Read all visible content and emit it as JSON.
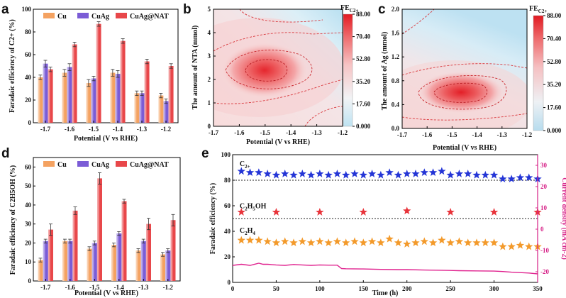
{
  "figure": {
    "panel_labels": [
      "a",
      "b",
      "c",
      "d",
      "e"
    ]
  },
  "chart_data": [
    {
      "id": "a",
      "type": "bar",
      "ylabel": "Faradaic efficiency of C2+ (%)",
      "xlabel": "Potential (V vs RHE)",
      "categories": [
        "-1.7",
        "-1.6",
        "-1.5",
        "-1.4",
        "-1.3",
        "-1.2"
      ],
      "ylim": [
        0,
        100
      ],
      "yticks": [
        0,
        20,
        40,
        60,
        80,
        100
      ],
      "series": [
        {
          "name": "Cu",
          "color": "#f4a261",
          "values": [
            40,
            44,
            35,
            44,
            26,
            24
          ],
          "errors": [
            2,
            3,
            3,
            3,
            2,
            2
          ]
        },
        {
          "name": "CuAg",
          "color": "#7b5cd6",
          "values": [
            52,
            49,
            39,
            43,
            26,
            19
          ],
          "errors": [
            3,
            3,
            2,
            3,
            2,
            2
          ]
        },
        {
          "name": "CuAg@NAT",
          "color": "#e8474a",
          "values": [
            47,
            69,
            87,
            72,
            54,
            50
          ],
          "errors": [
            2,
            2,
            2,
            2,
            2,
            2
          ]
        }
      ]
    },
    {
      "id": "b",
      "type": "heatmap",
      "xlabel": "Potential (V vs RHE)",
      "ylabel": "The amount of NTA (mmol)",
      "xticks": [
        "-1.7",
        "-1.6",
        "-1.5",
        "-1.4",
        "-1.3",
        "-1.2"
      ],
      "yticks": [
        "0",
        "1",
        "2",
        "3",
        "4",
        "5"
      ],
      "xlim": [
        -1.7,
        -1.2
      ],
      "ylim": [
        0,
        5
      ],
      "peak": {
        "x": -1.5,
        "y": 2.3,
        "value": 88.0
      },
      "colorbar": {
        "title": "FE",
        "title_sub": "C2+",
        "ticks": [
          "88.00",
          "70.40",
          "52.80",
          "35.20",
          "17.60",
          "0.000"
        ]
      }
    },
    {
      "id": "c",
      "type": "heatmap",
      "xlabel": "Potential (V vs RHE)",
      "ylabel": "The amount of Ag (mmol)",
      "xticks": [
        "-1.7",
        "-1.6",
        "-1.5",
        "-1.4",
        "-1.3",
        "-1.2"
      ],
      "yticks": [
        "0.0",
        "0.4",
        "0.8",
        "1.2",
        "1.6",
        "2.0"
      ],
      "xlim": [
        -1.7,
        -1.2
      ],
      "ylim": [
        0,
        2
      ],
      "peak": {
        "x": -1.47,
        "y": 0.6,
        "value": 88.0
      },
      "colorbar": {
        "title": "FE",
        "title_sub": "C2+",
        "ticks": [
          "88.00",
          "70.40",
          "52.80",
          "35.20",
          "17.60",
          "0.000"
        ]
      }
    },
    {
      "id": "d",
      "type": "bar",
      "ylabel": "Faradaic efficiency of C2H5OH (%)",
      "xlabel": "Potential (V vs RHE)",
      "categories": [
        "-1.7",
        "-1.6",
        "-1.5",
        "-1.4",
        "-1.3",
        "-1.2"
      ],
      "ylim": [
        0,
        65
      ],
      "yticks": [
        0,
        10,
        20,
        30,
        40,
        50,
        60
      ],
      "series": [
        {
          "name": "Cu",
          "color": "#f4a261",
          "values": [
            11,
            21,
            17,
            19,
            16,
            14
          ],
          "errors": [
            1,
            1,
            1,
            1,
            1,
            1
          ]
        },
        {
          "name": "CuAg",
          "color": "#7b5cd6",
          "values": [
            21,
            21,
            20,
            25,
            21,
            16
          ],
          "errors": [
            1,
            1,
            1,
            1,
            1,
            1
          ]
        },
        {
          "name": "CuAg@NAT",
          "color": "#e8474a",
          "values": [
            27,
            37,
            54,
            42,
            30,
            32
          ],
          "errors": [
            3,
            2,
            3,
            1,
            3,
            3
          ]
        }
      ]
    },
    {
      "id": "e",
      "type": "scatter",
      "xlabel": "Time (h)",
      "ylabel": "Faradaic efficiency (%)",
      "y2label": "Current density (mA cm-2)",
      "xlim": [
        0,
        350
      ],
      "ylim": [
        0,
        100
      ],
      "y2lim": [
        -25,
        35
      ],
      "xticks": [
        0,
        50,
        100,
        150,
        200,
        250,
        300,
        350
      ],
      "yticks": [
        0,
        20,
        40,
        60,
        80,
        100
      ],
      "y2ticks": [
        -20,
        -10,
        0,
        10,
        20,
        30
      ],
      "annotations": [
        {
          "text": "C",
          "sub": "2+",
          "x": 8,
          "y": 91
        },
        {
          "text": "C",
          "sub": "2",
          "text2": "H",
          "sub2": "5",
          "text3": "OH",
          "x": 8,
          "y": 58
        },
        {
          "text": "C",
          "sub": "2",
          "text2": "H",
          "sub2": "4",
          "x": 8,
          "y": 39
        }
      ],
      "ref_lines": [
        80,
        50
      ],
      "series": [
        {
          "name": "C2+",
          "color": "#2435d6",
          "marker": "star",
          "x": [
            10,
            20,
            30,
            40,
            50,
            60,
            70,
            80,
            90,
            100,
            110,
            120,
            130,
            140,
            150,
            160,
            170,
            180,
            190,
            200,
            210,
            220,
            230,
            240,
            250,
            260,
            270,
            280,
            290,
            300,
            310,
            320,
            330,
            340,
            350
          ],
          "y": [
            87,
            86,
            86,
            85,
            84,
            85,
            84,
            85,
            84,
            85,
            84,
            85,
            84,
            85,
            84,
            85,
            84,
            86,
            84,
            85,
            85,
            86,
            86,
            87,
            84,
            85,
            85,
            84,
            84,
            84,
            81,
            81,
            82,
            82,
            81
          ]
        },
        {
          "name": "C2H5OH",
          "color": "#e8333a",
          "marker": "star",
          "x": [
            10,
            50,
            100,
            150,
            200,
            250,
            300,
            350
          ],
          "y": [
            55,
            55,
            55,
            55,
            56,
            55,
            55,
            55
          ]
        },
        {
          "name": "C2H4",
          "color": "#f39a2b",
          "marker": "star",
          "x": [
            10,
            20,
            30,
            40,
            50,
            60,
            70,
            80,
            90,
            100,
            110,
            120,
            130,
            140,
            150,
            160,
            170,
            180,
            190,
            200,
            210,
            220,
            230,
            240,
            250,
            260,
            270,
            280,
            290,
            300,
            310,
            320,
            330,
            340,
            350
          ],
          "y": [
            33,
            33,
            33,
            32,
            31,
            32,
            31,
            32,
            31,
            32,
            31,
            32,
            31,
            32,
            31,
            32,
            31,
            34,
            31,
            30,
            31,
            32,
            31,
            33,
            31,
            32,
            31,
            31,
            31,
            31,
            28,
            28,
            29,
            28,
            28
          ]
        },
        {
          "name": "Current density",
          "color": "#e0238f",
          "marker": "line",
          "axis": "y2",
          "x": [
            0,
            10,
            20,
            30,
            35,
            40,
            50,
            60,
            70,
            80,
            90,
            100,
            110,
            120,
            125,
            130,
            150,
            170,
            190,
            200,
            220,
            240,
            260,
            280,
            300,
            310,
            320,
            330,
            340,
            350
          ],
          "y": [
            -17,
            -16.5,
            -17,
            -16,
            -16.5,
            -16.5,
            -16.8,
            -17,
            -16.6,
            -16.8,
            -17,
            -16.8,
            -16.9,
            -16.9,
            -18.5,
            -18.6,
            -18.7,
            -18.9,
            -19,
            -19,
            -19.2,
            -19.3,
            -19.5,
            -19.6,
            -19.7,
            -19.9,
            -20.2,
            -20.4,
            -20.6,
            -21
          ]
        }
      ]
    }
  ]
}
